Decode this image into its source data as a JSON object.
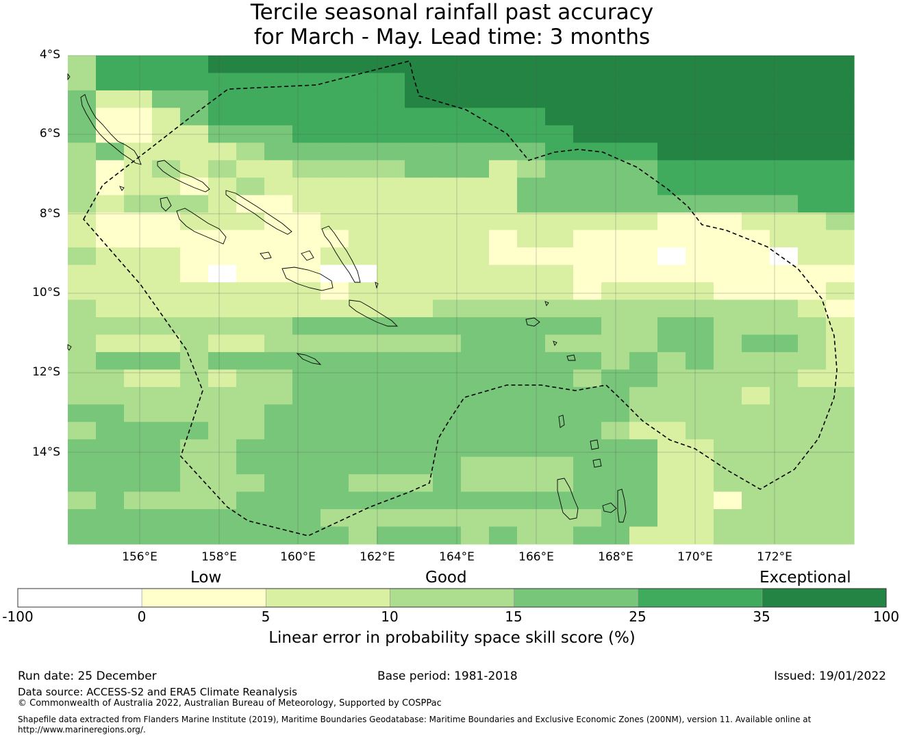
{
  "title": {
    "line1": "Tercile seasonal rainfall past accuracy",
    "line2": "for March - May. Lead time: 3 months"
  },
  "map": {
    "lat_labels": [
      "4°S",
      "6°S",
      "8°S",
      "10°S",
      "12°S",
      "14°S"
    ],
    "lon_labels": [
      "156°E",
      "158°E",
      "160°E",
      "162°E",
      "164°E",
      "166°E",
      "168°E",
      "170°E",
      "172°E"
    ],
    "extent": {
      "lon_min": 154.2,
      "lon_max": 174.0,
      "lat_min": -16.3,
      "lat_max": -4.0
    },
    "grid_levels_note": "Cell values are colour class indices: 0 = -100 to 0, 1 = 0 to 5, 2 = 5 to 10, 3 = 10 to 15, 4 = 15 to 25, 5 = 25 to 35, 6 = 35 to 100",
    "grid": [
      "3555566666666666666666666666",
      "3555555555556666666666666666",
      "4224455555556666666666666666",
      "4112455555555555566666666666",
      "4112244455555555556666666666",
      "3422223444444444455556666666",
      "3123232233334442344445555555",
      "3122123222222222444445555555",
      "3233321122222222444444444455",
      "2111222112222222222221112223",
      "2111111111222221221111111222",
      "3222111112222221111110111022",
      "2222101110022222221111111111",
      "2222222221222222221222211112",
      "3222222222222333333333333321",
      "3333333344444444444334433332",
      "3222322333333344433334434432",
      "3444344444444444444343433332",
      "3322323344444444443443333322",
      "3333333344444444444433332333",
      "4433333444444444444433333333",
      "3444433444444444444322333333",
      "4444334444444444444442233333",
      "4444334444444433334442233333",
      "4444333444333433334442233333",
      "3433334444444444444442213333",
      "4444444443333333333442233333",
      "4444444444344434334422233333"
    ]
  },
  "colorbar": {
    "tick_labels": [
      "-100",
      "0",
      "5",
      "10",
      "15",
      "25",
      "35",
      "100"
    ],
    "category_labels": {
      "low": "Low",
      "good": "Good",
      "exceptional": "Exceptional"
    },
    "colors": [
      "#ffffff",
      "#ffffcc",
      "#d9f0a3",
      "#addd8e",
      "#78c679",
      "#41ab5d",
      "#238443"
    ],
    "axis_label": "Linear error in probability space skill score (%)"
  },
  "footer": {
    "run_date": "Run date: 25 December",
    "base_period": "Base period: 1981-2018",
    "issued": "Issued: 19/01/2022",
    "data_source": "Data source: ACCESS-S2 and ERA5 Climate Reanalysis",
    "copyright": "© Commonwealth of Australia 2022, Australian Bureau of Meteorology, Supported by COSPPac",
    "shapefile_line1": "Shapefile data extracted from Flanders Marine Institute (2019), Maritime Boundaries Geodatabase: Maritime Boundaries and Exclusive Economic Zones (200NM), version 11. Available online at",
    "shapefile_line2": "http://www.marineregions.org/."
  }
}
